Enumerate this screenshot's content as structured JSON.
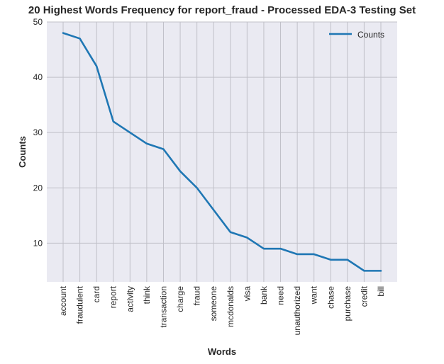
{
  "chart_data": {
    "type": "line",
    "title": "20 Highest Words Frequency for report_fraud - Processed EDA-3 Testing Set",
    "xlabel": "Words",
    "ylabel": "Counts",
    "categories": [
      "account",
      "fraudulent",
      "card",
      "report",
      "activity",
      "think",
      "transaction",
      "charge",
      "fraud",
      "someone",
      "mcdonalds",
      "visa",
      "bank",
      "need",
      "unauthorized",
      "want",
      "chase",
      "purchase",
      "credit",
      "bill"
    ],
    "series": [
      {
        "name": "Counts",
        "values": [
          48,
          47,
          42,
          32,
          30,
          28,
          27,
          23,
          20,
          16,
          12,
          11,
          9,
          9,
          8,
          8,
          7,
          7,
          5,
          5
        ],
        "color": "#1f77b4"
      }
    ],
    "ylim": [
      3,
      50
    ],
    "yticks": [
      10,
      20,
      30,
      40,
      50
    ],
    "grid": true,
    "legend_position": "top-right",
    "background": "#eaeaf2",
    "grid_color": "#c0c0c8"
  }
}
